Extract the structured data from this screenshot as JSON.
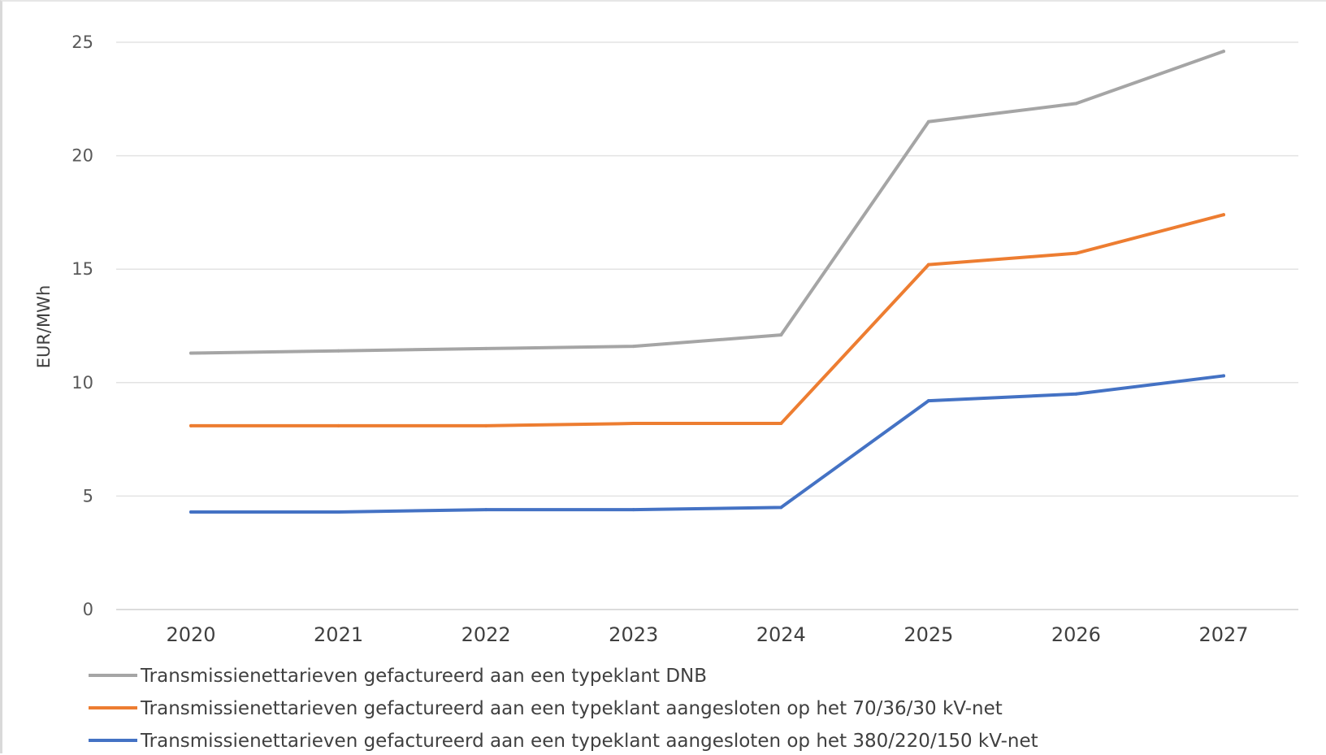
{
  "chart_data": {
    "type": "line",
    "title": "",
    "xlabel": "",
    "ylabel": "EUR/MWh",
    "categories": [
      "2020",
      "2021",
      "2022",
      "2023",
      "2024",
      "2025",
      "2026",
      "2027"
    ],
    "ylim": [
      0,
      25
    ],
    "yticks": [
      0,
      5,
      10,
      15,
      20,
      25
    ],
    "grid": true,
    "legend_position": "bottom",
    "series": [
      {
        "name": "Transmissienettarieven gefactureerd aan een typeklant DNB",
        "color": "#a5a5a5",
        "values": [
          11.3,
          11.4,
          11.5,
          11.6,
          12.1,
          21.5,
          22.3,
          24.6
        ]
      },
      {
        "name": "Transmissienettarieven gefactureerd aan een typeklant aangesloten op het 70/36/30 kV-net",
        "color": "#ed7d31",
        "values": [
          8.1,
          8.1,
          8.1,
          8.2,
          8.2,
          15.2,
          15.7,
          17.4
        ]
      },
      {
        "name": "Transmissienettarieven gefactureerd aan een typeklant aangesloten op het 380/220/150 kV-net",
        "color": "#4472c4",
        "values": [
          4.3,
          4.3,
          4.4,
          4.4,
          4.5,
          9.2,
          9.5,
          10.3
        ]
      }
    ]
  }
}
